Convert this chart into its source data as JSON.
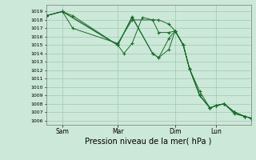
{
  "bg_color": "#cce8d8",
  "grid_color": "#99ccb0",
  "line_color": "#1a6b2a",
  "marker_color": "#1a6b2a",
  "xlabel": "Pression niveau de la mer( hPa )",
  "xlabel_fontsize": 7,
  "ylim": [
    1005.5,
    1019.8
  ],
  "yticks": [
    1006,
    1007,
    1008,
    1009,
    1010,
    1011,
    1012,
    1013,
    1014,
    1015,
    1016,
    1017,
    1018,
    1019
  ],
  "xtick_labels": [
    "Sam",
    "Mar",
    "Dim",
    "Lun"
  ],
  "xlim": [
    0,
    100
  ],
  "xtick_positions": [
    8,
    35,
    63,
    83
  ],
  "series": [
    [
      0,
      1018.5,
      8,
      1019.0,
      13,
      1018.5,
      35,
      1015.0,
      38,
      1014.0,
      42,
      1015.2,
      47,
      1018.3,
      52,
      1018.0,
      55,
      1018.0,
      60,
      1017.5,
      63,
      1016.7,
      67,
      1015.0,
      70,
      1012.2,
      75,
      1009.0,
      80,
      1007.5,
      83,
      1007.8,
      87,
      1008.0,
      92,
      1007.0,
      97,
      1006.5,
      100,
      1006.3
    ],
    [
      0,
      1018.5,
      8,
      1019.0,
      13,
      1017.0,
      35,
      1015.2,
      42,
      1018.0,
      52,
      1018.0,
      55,
      1016.5,
      60,
      1016.5,
      63,
      1016.7,
      67,
      1015.0,
      70,
      1012.2,
      75,
      1009.5,
      80,
      1007.5,
      83,
      1007.8,
      87,
      1008.0,
      92,
      1007.0,
      97,
      1006.5,
      100,
      1006.3
    ],
    [
      0,
      1018.5,
      8,
      1019.0,
      35,
      1015.0,
      42,
      1018.4,
      52,
      1014.0,
      55,
      1013.5,
      60,
      1014.5,
      63,
      1016.7,
      67,
      1015.0,
      70,
      1012.2,
      75,
      1009.0,
      80,
      1007.5,
      83,
      1007.8,
      87,
      1008.0,
      92,
      1006.8,
      97,
      1006.5,
      100,
      1006.3
    ],
    [
      0,
      1018.5,
      8,
      1019.0,
      35,
      1015.0,
      42,
      1018.3,
      52,
      1014.0,
      55,
      1013.5,
      60,
      1015.8,
      63,
      1016.7,
      67,
      1015.0,
      70,
      1012.2,
      75,
      1009.0,
      80,
      1007.5,
      83,
      1007.8,
      87,
      1008.0,
      92,
      1007.0,
      97,
      1006.5,
      100,
      1006.3
    ]
  ]
}
